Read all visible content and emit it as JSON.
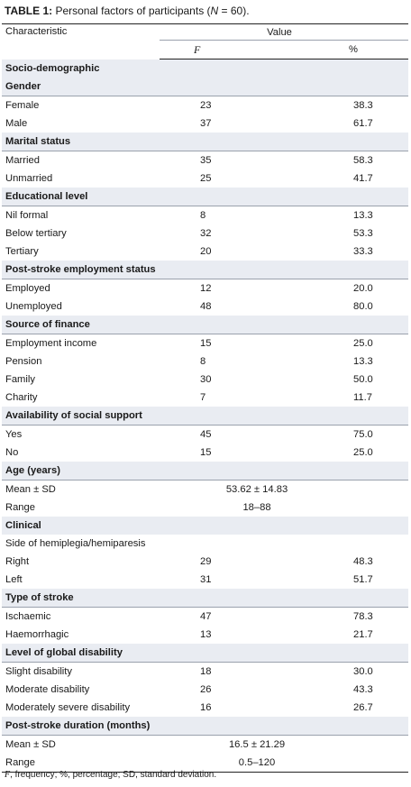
{
  "caption": {
    "label": "TABLE 1:",
    "text_before": " Personal factors of participants (",
    "n_symbol": "N",
    "text_after": " = 60)."
  },
  "header": {
    "characteristic": "Characteristic",
    "value": "Value",
    "f": "F",
    "pct": "%"
  },
  "rows": [
    {
      "type": "section",
      "label": "Socio-demographic"
    },
    {
      "type": "group",
      "label": "Gender"
    },
    {
      "type": "data",
      "label": "Female",
      "f": "23",
      "pct": "38.3"
    },
    {
      "type": "data",
      "label": "Male",
      "f": "37",
      "pct": "61.7"
    },
    {
      "type": "group",
      "label": "Marital status"
    },
    {
      "type": "data",
      "label": "Married",
      "f": "35",
      "pct": "58.3"
    },
    {
      "type": "data",
      "label": "Unmarried",
      "f": "25",
      "pct": "41.7"
    },
    {
      "type": "group",
      "label": "Educational level"
    },
    {
      "type": "data",
      "label": "Nil formal",
      "f": "8",
      "pct": "13.3"
    },
    {
      "type": "data",
      "label": "Below tertiary",
      "f": "32",
      "pct": "53.3"
    },
    {
      "type": "data",
      "label": "Tertiary",
      "f": "20",
      "pct": "33.3"
    },
    {
      "type": "group",
      "label": "Post-stroke employment status"
    },
    {
      "type": "data",
      "label": "Employed",
      "f": "12",
      "pct": "20.0"
    },
    {
      "type": "data",
      "label": "Unemployed",
      "f": "48",
      "pct": "80.0"
    },
    {
      "type": "group",
      "label": "Source of finance"
    },
    {
      "type": "data",
      "label": "Employment income",
      "f": "15",
      "pct": "25.0"
    },
    {
      "type": "data",
      "label": "Pension",
      "f": "8",
      "pct": "13.3"
    },
    {
      "type": "data",
      "label": "Family",
      "f": "30",
      "pct": "50.0"
    },
    {
      "type": "data",
      "label": "Charity",
      "f": "7",
      "pct": "11.7"
    },
    {
      "type": "group",
      "label": "Availability of social support"
    },
    {
      "type": "data",
      "label": "Yes",
      "f": "45",
      "pct": "75.0"
    },
    {
      "type": "data",
      "label": "No",
      "f": "15",
      "pct": "25.0"
    },
    {
      "type": "group",
      "label": "Age (years)"
    },
    {
      "type": "span",
      "label": "Mean ± SD",
      "value": "53.62 ± 14.83"
    },
    {
      "type": "span",
      "label": "Range",
      "value": "18–88"
    },
    {
      "type": "section",
      "label": "Clinical"
    },
    {
      "type": "subgroup",
      "label": "Side of hemiplegia/hemiparesis"
    },
    {
      "type": "data",
      "label": "Right",
      "f": "29",
      "pct": "48.3"
    },
    {
      "type": "data",
      "label": "Left",
      "f": "31",
      "pct": "51.7"
    },
    {
      "type": "group",
      "label": "Type of stroke"
    },
    {
      "type": "data",
      "label": "Ischaemic",
      "f": "47",
      "pct": "78.3"
    },
    {
      "type": "data",
      "label": "Haemorrhagic",
      "f": "13",
      "pct": "21.7"
    },
    {
      "type": "group",
      "label": "Level of global disability"
    },
    {
      "type": "data",
      "label": "Slight disability",
      "f": "18",
      "pct": "30.0"
    },
    {
      "type": "data",
      "label": "Moderate disability",
      "f": "26",
      "pct": "43.3"
    },
    {
      "type": "data",
      "label": "Moderately severe disability",
      "f": "16",
      "pct": "26.7"
    },
    {
      "type": "group",
      "label": "Post-stroke duration (months)"
    },
    {
      "type": "span",
      "label": "Mean ± SD",
      "value": "16.5 ± 21.29"
    },
    {
      "type": "span",
      "label": "Range",
      "value": "0.5–120"
    }
  ],
  "footnote": {
    "f_symbol": "F",
    "text": ", frequency; %, percentage; SD, standard deviation."
  }
}
